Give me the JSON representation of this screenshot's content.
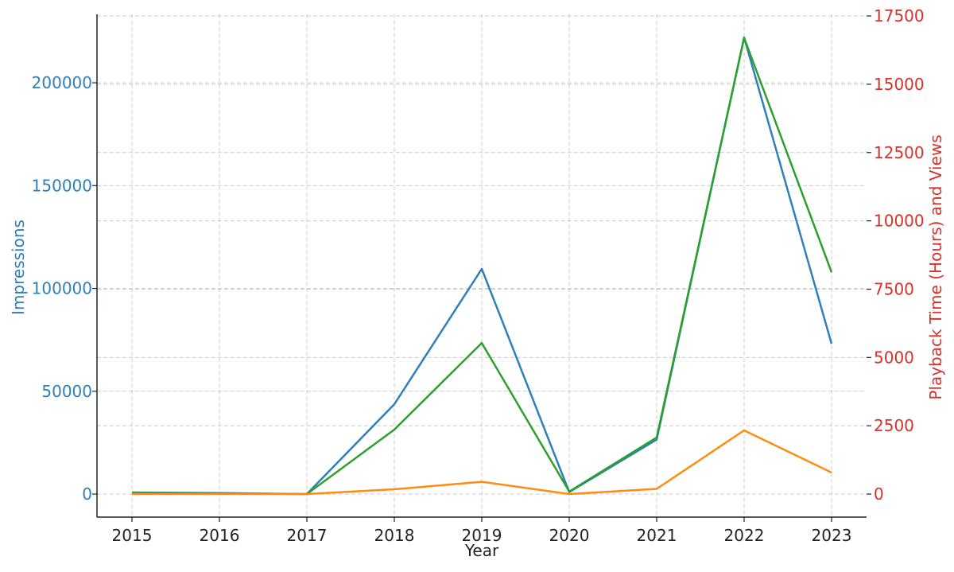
{
  "chart_data": {
    "type": "line",
    "xlabel": "Year",
    "ylabel_left": "Impressions",
    "ylabel_right": "Playback Time (Hours) and Views",
    "x": [
      2015,
      2016,
      2017,
      2018,
      2019,
      2020,
      2021,
      2022,
      2023
    ],
    "x_ticks": [
      "2015",
      "2016",
      "2017",
      "2018",
      "2019",
      "2020",
      "2021",
      "2022",
      "2023"
    ],
    "ylim_left": [
      -11200,
      233300
    ],
    "ylim_right": [
      -844,
      17560
    ],
    "yticks_left": [
      "0",
      "50000",
      "100000",
      "150000",
      "200000"
    ],
    "yticks_right": [
      "0",
      "2500",
      "5000",
      "7500",
      "10000",
      "12500",
      "15000",
      "17500"
    ],
    "grid": true,
    "colors": {
      "left_axis": "#2e7fba",
      "right_axis": "#d9312a",
      "text": "#222222"
    },
    "series": [
      {
        "axis": "left",
        "color": "#2e7fba",
        "values": [
          800,
          500,
          0,
          43700,
          109500,
          1000,
          26500,
          222000,
          73100
        ]
      },
      {
        "axis": "right",
        "color": "#2ca02c",
        "values": [
          40,
          25,
          0,
          2360,
          5530,
          90,
          2070,
          16700,
          8120
        ]
      },
      {
        "axis": "right",
        "color": "#ff8c10",
        "values": [
          0,
          0,
          0,
          175,
          450,
          0,
          190,
          2330,
          786
        ]
      }
    ]
  }
}
